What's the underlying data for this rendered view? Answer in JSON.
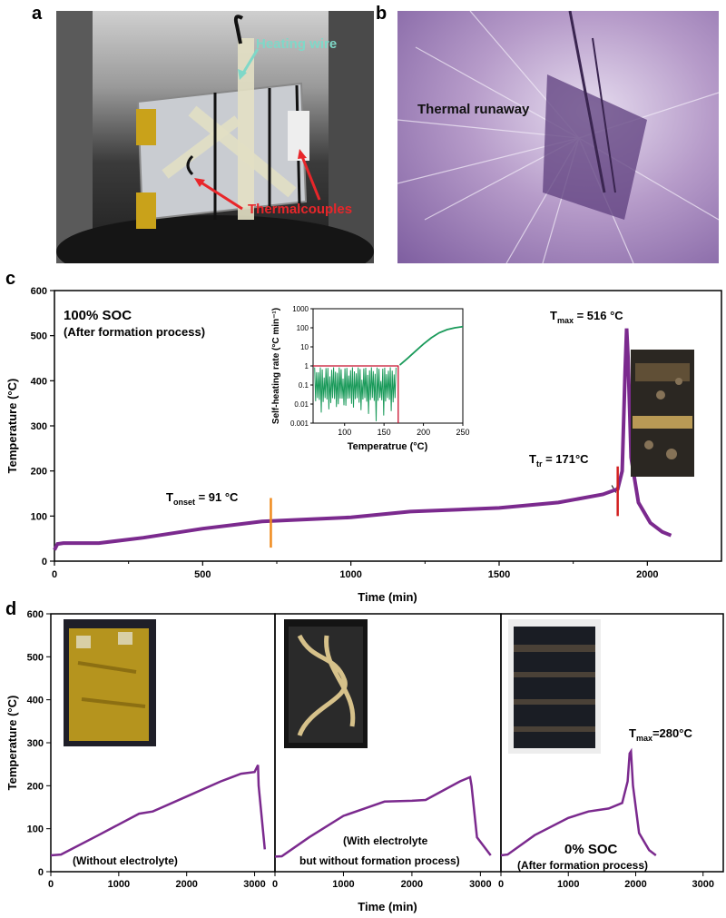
{
  "panels": {
    "a": {
      "letter": "a",
      "label_heating": "Heating wire",
      "label_thermo": "Thermalcouples"
    },
    "b": {
      "letter": "b",
      "label_runaway": "Thermal runaway"
    },
    "c": {
      "letter": "c"
    },
    "d": {
      "letter": "d"
    }
  },
  "colors": {
    "curve": "#7b2a8e",
    "inset_curve": "#1a9a5a",
    "inset_marker": "#c8102e",
    "onset_marker": "#f08a1c",
    "tr_marker": "#d21f1f",
    "heating_label": "#7fd8c8",
    "thermo_label": "#e8262a"
  },
  "chart_data": [
    {
      "id": "c-main",
      "type": "line",
      "xlabel": "Time (min)",
      "ylabel": "Temperature (°C)",
      "xlim": [
        0,
        2250
      ],
      "ylim": [
        0,
        600
      ],
      "xticks": [
        0,
        500,
        1000,
        1500,
        2000
      ],
      "yticks": [
        0,
        100,
        200,
        300,
        400,
        500,
        600
      ],
      "title_lines": [
        "100% SOC",
        "(After formation process)"
      ],
      "annotations": [
        {
          "text": "T",
          "sub": "onset",
          "rest": " = 91 °C"
        },
        {
          "text": "T",
          "sub": "tr",
          "rest": " = 171°C"
        },
        {
          "text": "T",
          "sub": "max",
          "rest": " = 516 °C"
        }
      ],
      "markers_x": {
        "onset": 730,
        "tr": 1900
      },
      "series": [
        {
          "x": [
            0,
            10,
            30,
            150,
            300,
            500,
            700,
            1000,
            1200,
            1500,
            1700,
            1850,
            1900,
            1915,
            1925,
            1930,
            1935,
            1945,
            1970,
            2010,
            2050,
            2080
          ],
          "y": [
            25,
            38,
            40,
            40,
            52,
            72,
            88,
            97,
            110,
            118,
            130,
            148,
            160,
            200,
            420,
            516,
            450,
            230,
            130,
            85,
            65,
            57
          ]
        }
      ]
    },
    {
      "id": "c-inset",
      "type": "line",
      "xlabel": "Temperatrue (°C)",
      "ylabel": "Self-heating rate (°C min⁻¹)",
      "xlim": [
        60,
        250
      ],
      "ylim_log10": [
        -3,
        3
      ],
      "xticks": [
        100,
        150,
        200,
        250
      ],
      "yticks_labels": [
        "0.001",
        "0.01",
        "0.1",
        "1",
        "10",
        "100",
        "1000"
      ],
      "threshold_rate": 1,
      "threshold_temp": 168,
      "series": [
        {
          "x": [
            170,
            180,
            190,
            200,
            210,
            220,
            230,
            240,
            250
          ],
          "y": [
            1.1,
            2.5,
            6,
            14,
            30,
            55,
            80,
            100,
            115
          ]
        }
      ]
    },
    {
      "id": "d-1",
      "type": "line",
      "xlabel": "",
      "ylabel": "Temperature (°C)",
      "xlim": [
        0,
        3300
      ],
      "ylim": [
        0,
        600
      ],
      "xticks": [
        0,
        1000,
        2000,
        3000
      ],
      "yticks": [
        0,
        100,
        200,
        300,
        400,
        500,
        600
      ],
      "caption": "(Without electrolyte)",
      "series": [
        {
          "x": [
            0,
            150,
            700,
            1300,
            1500,
            2000,
            2500,
            2800,
            3000,
            3050,
            3060,
            3150
          ],
          "y": [
            38,
            40,
            85,
            135,
            140,
            175,
            210,
            228,
            232,
            248,
            200,
            52
          ]
        }
      ]
    },
    {
      "id": "d-2",
      "type": "line",
      "xlabel": "Time (min)",
      "ylabel": "",
      "xlim": [
        0,
        3300
      ],
      "ylim": [
        0,
        600
      ],
      "xticks": [
        0,
        1000,
        2000,
        3000
      ],
      "caption_lines": [
        "(With electrolyte",
        "but without formation process)"
      ],
      "series": [
        {
          "x": [
            0,
            100,
            500,
            1000,
            1600,
            2000,
            2200,
            2700,
            2850,
            2870,
            2950,
            3150
          ],
          "y": [
            35,
            36,
            80,
            130,
            163,
            165,
            167,
            210,
            220,
            200,
            80,
            38
          ]
        }
      ]
    },
    {
      "id": "d-3",
      "type": "line",
      "xlabel": "",
      "ylabel": "",
      "xlim": [
        0,
        3300
      ],
      "ylim": [
        0,
        600
      ],
      "xticks": [
        0,
        1000,
        2000,
        3000
      ],
      "soc_label": "0% SOC",
      "caption": "(After formation process)",
      "annotation": {
        "text": "T",
        "sub": "max",
        "rest": "=280°C"
      },
      "series": [
        {
          "x": [
            0,
            100,
            500,
            1000,
            1300,
            1600,
            1800,
            1880,
            1910,
            1930,
            1960,
            2050,
            2200,
            2300
          ],
          "y": [
            38,
            40,
            85,
            125,
            140,
            147,
            160,
            210,
            275,
            280,
            200,
            90,
            50,
            38
          ]
        }
      ]
    }
  ]
}
